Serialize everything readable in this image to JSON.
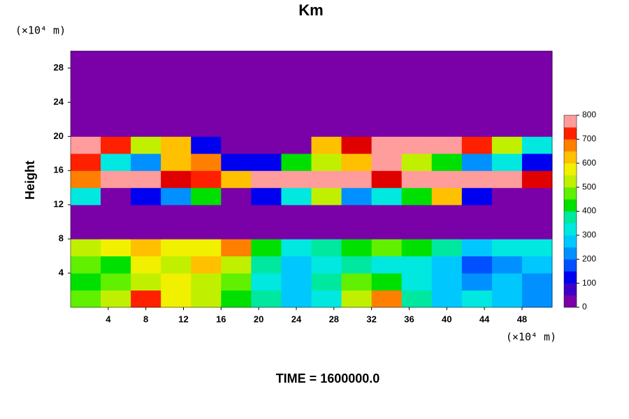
{
  "chart_data": {
    "type": "heatmap",
    "title": "Km",
    "ylabel": "Height",
    "xunit": "(×10⁴ m)",
    "yunit": "(×10⁴ m)",
    "footer": "TIME = 1600000.0",
    "xlim": [
      0,
      51.2
    ],
    "ylim": [
      0,
      30
    ],
    "xticks": [
      4,
      8,
      12,
      16,
      20,
      24,
      28,
      32,
      36,
      40,
      44,
      48
    ],
    "yticks": [
      4,
      8,
      12,
      16,
      20,
      24,
      28
    ],
    "x_edges": [
      0,
      3.2,
      6.4,
      9.6,
      12.8,
      16,
      19.2,
      22.4,
      25.6,
      28.8,
      32,
      35.2,
      38.4,
      41.6,
      44.8,
      48,
      51.2
    ],
    "y_edges": [
      0,
      2,
      4,
      6,
      8,
      10,
      12,
      14,
      16,
      18,
      20,
      22,
      24,
      26,
      28,
      30
    ],
    "values": [
      [
        450,
        500,
        700,
        550,
        500,
        400,
        350,
        250,
        300,
        500,
        650,
        350,
        250,
        300,
        250,
        200
      ],
      [
        400,
        450,
        500,
        550,
        500,
        450,
        300,
        250,
        350,
        450,
        400,
        300,
        250,
        200,
        250,
        200
      ],
      [
        450,
        400,
        550,
        500,
        600,
        500,
        350,
        250,
        300,
        350,
        300,
        300,
        250,
        150,
        200,
        250
      ],
      [
        500,
        550,
        600,
        550,
        550,
        650,
        400,
        300,
        350,
        400,
        450,
        400,
        350,
        250,
        300,
        300
      ],
      [
        0,
        0,
        0,
        0,
        0,
        0,
        0,
        0,
        0,
        0,
        0,
        0,
        0,
        0,
        0,
        0
      ],
      [
        0,
        0,
        0,
        0,
        0,
        0,
        0,
        0,
        0,
        0,
        0,
        0,
        0,
        0,
        0,
        0
      ],
      [
        300,
        0,
        100,
        200,
        400,
        0,
        100,
        300,
        500,
        200,
        300,
        400,
        600,
        100,
        0,
        0
      ],
      [
        650,
        800,
        800,
        750,
        700,
        600,
        800,
        800,
        800,
        800,
        750,
        800,
        800,
        800,
        800,
        750
      ],
      [
        700,
        300,
        200,
        600,
        650,
        100,
        100,
        400,
        500,
        600,
        800,
        500,
        400,
        200,
        300,
        100
      ],
      [
        800,
        700,
        500,
        600,
        100,
        0,
        0,
        0,
        600,
        750,
        800,
        800,
        800,
        700,
        500,
        300
      ],
      [
        0,
        0,
        0,
        0,
        0,
        0,
        0,
        0,
        0,
        0,
        0,
        0,
        0,
        0,
        0,
        0
      ],
      [
        0,
        0,
        0,
        0,
        0,
        0,
        0,
        0,
        0,
        0,
        0,
        0,
        0,
        0,
        0,
        0
      ],
      [
        0,
        0,
        0,
        0,
        0,
        0,
        0,
        0,
        0,
        0,
        0,
        0,
        0,
        0,
        0,
        0
      ],
      [
        0,
        0,
        0,
        0,
        0,
        0,
        0,
        0,
        0,
        0,
        0,
        0,
        0,
        0,
        0,
        0
      ],
      [
        0,
        0,
        0,
        0,
        0,
        0,
        0,
        0,
        0,
        0,
        0,
        0,
        0,
        0,
        0,
        0
      ]
    ],
    "colorbar": {
      "lim": [
        0,
        800
      ],
      "ticks": [
        0,
        100,
        200,
        300,
        400,
        500,
        600,
        700,
        800
      ],
      "step": 50,
      "colors": [
        "#7a00a8",
        "#3c00c8",
        "#0000f0",
        "#0050ff",
        "#0090ff",
        "#00c8ff",
        "#00e8e0",
        "#00e8a0",
        "#00e000",
        "#60f000",
        "#c0f000",
        "#f0f000",
        "#ffc000",
        "#ff8000",
        "#ff2000",
        "#e00000",
        "#ff9c9c"
      ]
    }
  }
}
